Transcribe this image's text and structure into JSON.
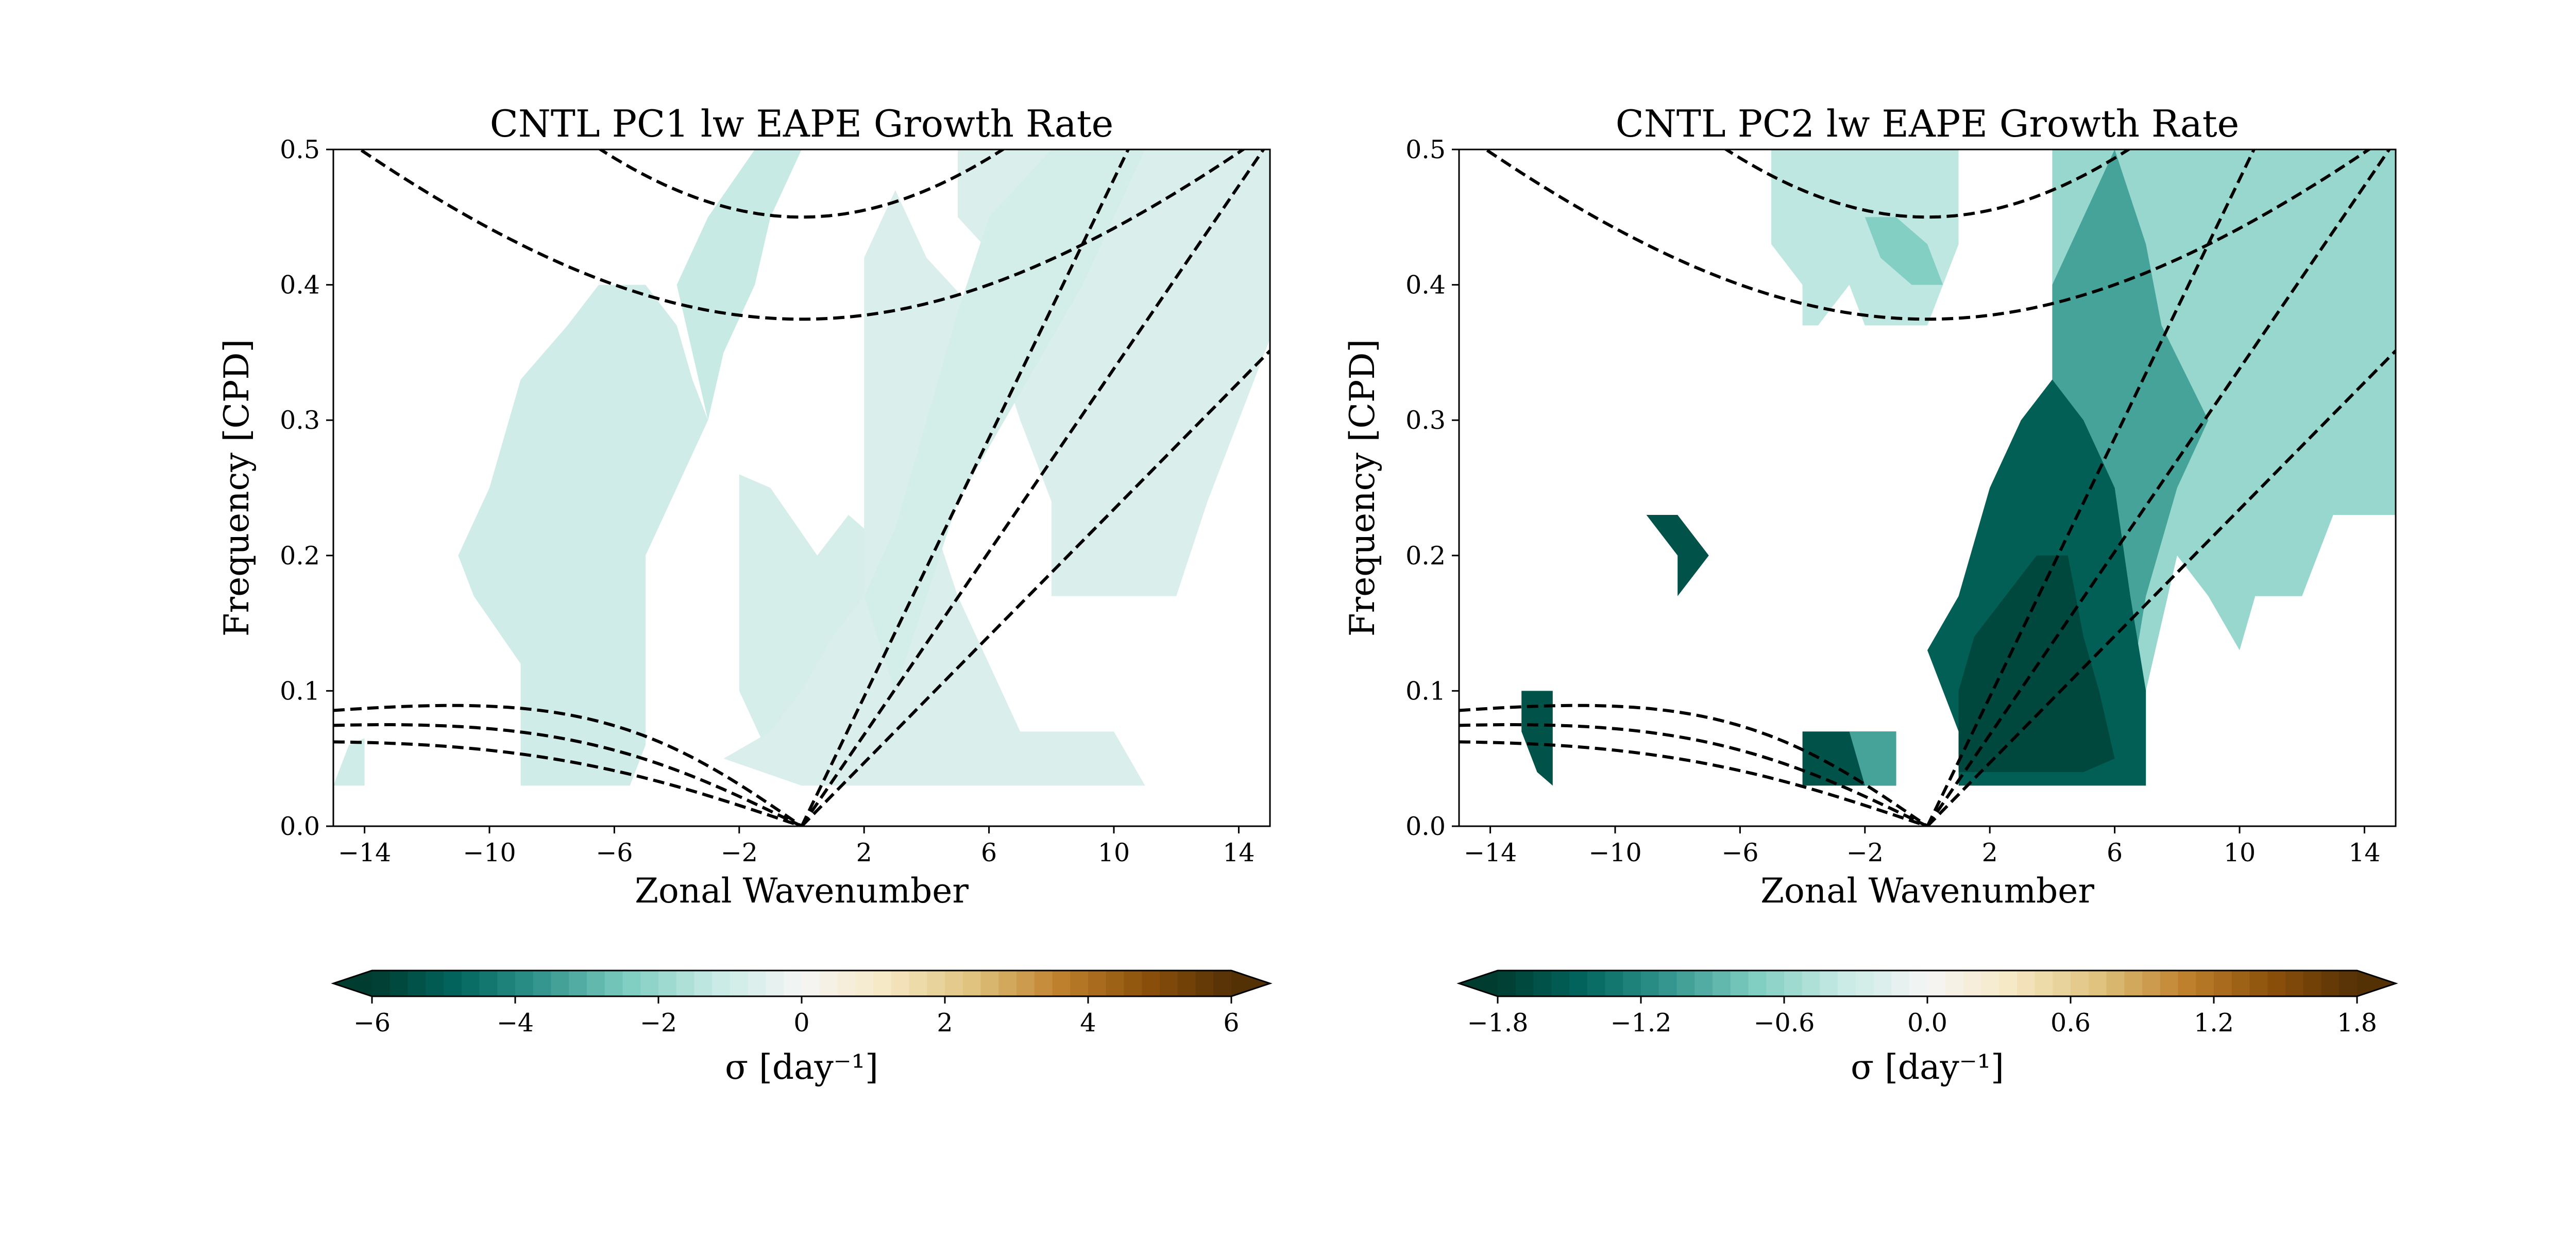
{
  "chart_data": [
    {
      "type": "heatmap",
      "title": "CNTL PC1 lw EAPE Growth Rate",
      "xlabel": "Zonal Wavenumber",
      "ylabel": "Frequency [CPD]",
      "xlim": [
        -15,
        15
      ],
      "ylim": [
        0,
        0.5
      ],
      "xticks": [
        -14,
        -10,
        -6,
        -2,
        2,
        6,
        10,
        14
      ],
      "xtick_labels": [
        "−14",
        "−10",
        "−6",
        "−2",
        "2",
        "6",
        "10",
        "14"
      ],
      "yticks": [
        0,
        0.1,
        0.2,
        0.3,
        0.4,
        0.5
      ],
      "ytick_labels": [
        "0.0",
        "0.1",
        "0.2",
        "0.3",
        "0.4",
        "0.5"
      ],
      "colorbar": {
        "label": "σ [day⁻¹]",
        "range": [
          -6,
          6
        ],
        "ticks": [
          -6,
          -4,
          -2,
          0,
          2,
          4,
          6
        ],
        "tick_labels": [
          "−6",
          "−4",
          "−2",
          "0",
          "2",
          "4",
          "6"
        ],
        "cmap": "BrBG_r",
        "extend": "both"
      },
      "shaded_regions": [
        {
          "value": -1.0,
          "polygon": [
            [
              -9,
              0.03
            ],
            [
              -9,
              0.12
            ],
            [
              -10.5,
              0.17
            ],
            [
              -11,
              0.2
            ],
            [
              -10,
              0.25
            ],
            [
              -9,
              0.33
            ],
            [
              -7.5,
              0.37
            ],
            [
              -6.5,
              0.4
            ],
            [
              -5,
              0.4
            ],
            [
              -4,
              0.37
            ],
            [
              -3.5,
              0.33
            ],
            [
              -3,
              0.3
            ],
            [
              -4,
              0.25
            ],
            [
              -5,
              0.2
            ],
            [
              -5,
              0.06
            ],
            [
              -5.5,
              0.03
            ]
          ]
        },
        {
          "value": -1.2,
          "polygon": [
            [
              -3,
              0.3
            ],
            [
              -2.5,
              0.35
            ],
            [
              -1.5,
              0.4
            ],
            [
              -1,
              0.45
            ],
            [
              0,
              0.5
            ],
            [
              -1.5,
              0.5
            ],
            [
              -3,
              0.45
            ],
            [
              -4,
              0.4
            ]
          ]
        },
        {
          "value": -0.8,
          "polygon": [
            [
              -2,
              0.26
            ],
            [
              -2,
              0.1
            ],
            [
              -1,
              0.05
            ],
            [
              0.5,
              0.04
            ],
            [
              2,
              0.1
            ],
            [
              3,
              0.2
            ],
            [
              1.5,
              0.23
            ],
            [
              0.5,
              0.2
            ],
            [
              -1,
              0.25
            ]
          ]
        },
        {
          "value": -0.7,
          "polygon": [
            [
              -2.5,
              0.05
            ],
            [
              0,
              0.03
            ],
            [
              3,
              0.03
            ],
            [
              11,
              0.03
            ],
            [
              10,
              0.07
            ],
            [
              7,
              0.07
            ],
            [
              6,
              0.12
            ],
            [
              5,
              0.17
            ],
            [
              4,
              0.24
            ],
            [
              5,
              0.3
            ],
            [
              6,
              0.35
            ],
            [
              7,
              0.4
            ],
            [
              5,
              0.45
            ],
            [
              5,
              0.5
            ],
            [
              11,
              0.5
            ],
            [
              15,
              0.5
            ],
            [
              15,
              0.36
            ],
            [
              14,
              0.3
            ],
            [
              13,
              0.24
            ],
            [
              12,
              0.17
            ],
            [
              10,
              0.17
            ],
            [
              8,
              0.17
            ],
            [
              8,
              0.24
            ],
            [
              7,
              0.3
            ],
            [
              6,
              0.37
            ],
            [
              4,
              0.42
            ],
            [
              3,
              0.47
            ],
            [
              2,
              0.42
            ],
            [
              2,
              0.32
            ],
            [
              2,
              0.25
            ],
            [
              2,
              0.17
            ],
            [
              1,
              0.14
            ],
            [
              0,
              0.1
            ],
            [
              -1,
              0.07
            ]
          ]
        },
        {
          "value": -0.9,
          "polygon": [
            [
              2,
              0.17
            ],
            [
              3,
              0.22
            ],
            [
              4,
              0.3
            ],
            [
              5,
              0.38
            ],
            [
              6,
              0.45
            ],
            [
              8,
              0.5
            ],
            [
              11,
              0.5
            ],
            [
              9,
              0.4
            ],
            [
              7,
              0.32
            ],
            [
              5,
              0.24
            ],
            [
              4,
              0.17
            ],
            [
              3,
              0.1
            ]
          ]
        },
        {
          "value": -1.0,
          "polygon": [
            [
              -15,
              0.03
            ],
            [
              -14,
              0.03
            ],
            [
              -14,
              0.065
            ],
            [
              -14.5,
              0.06
            ]
          ]
        }
      ],
      "dashed_curves": "equatorial wave dispersion curves"
    },
    {
      "type": "heatmap",
      "title": "CNTL PC2 lw EAPE Growth Rate",
      "xlabel": "Zonal Wavenumber",
      "ylabel": "Frequency [CPD]",
      "xlim": [
        -15,
        15
      ],
      "ylim": [
        0,
        0.5
      ],
      "xticks": [
        -14,
        -10,
        -6,
        -2,
        2,
        6,
        10,
        14
      ],
      "xtick_labels": [
        "−14",
        "−10",
        "−6",
        "−2",
        "2",
        "6",
        "10",
        "14"
      ],
      "yticks": [
        0,
        0.1,
        0.2,
        0.3,
        0.4,
        0.5
      ],
      "ytick_labels": [
        "0.0",
        "0.1",
        "0.2",
        "0.3",
        "0.4",
        "0.5"
      ],
      "colorbar": {
        "label": "σ [day⁻¹]",
        "range": [
          -1.8,
          1.8
        ],
        "ticks": [
          -1.8,
          -1.2,
          -0.6,
          0,
          0.6,
          1.2,
          1.8
        ],
        "tick_labels": [
          "−1.8",
          "−1.2",
          "−0.6",
          "0.0",
          "0.6",
          "1.2",
          "1.8"
        ],
        "cmap": "BrBG_r",
        "extend": "both"
      },
      "shaded_regions": [
        {
          "value": -0.4,
          "polygon": [
            [
              -5,
              0.5
            ],
            [
              1,
              0.5
            ],
            [
              1,
              0.43
            ],
            [
              0.5,
              0.4
            ],
            [
              0,
              0.37
            ],
            [
              -1,
              0.37
            ],
            [
              -2,
              0.37
            ],
            [
              -2.5,
              0.4
            ],
            [
              -3.5,
              0.37
            ],
            [
              -4,
              0.37
            ],
            [
              -4,
              0.4
            ],
            [
              -5,
              0.43
            ]
          ]
        },
        {
          "value": -0.7,
          "polygon": [
            [
              -2,
              0.45
            ],
            [
              -1,
              0.45
            ],
            [
              0,
              0.43
            ],
            [
              0.5,
              0.4
            ],
            [
              -0.5,
              0.4
            ],
            [
              -1.5,
              0.42
            ]
          ]
        },
        {
          "value": -0.6,
          "polygon": [
            [
              4,
              0.5
            ],
            [
              10,
              0.5
            ],
            [
              15,
              0.5
            ],
            [
              15,
              0.23
            ],
            [
              13,
              0.23
            ],
            [
              12,
              0.17
            ],
            [
              10.5,
              0.17
            ],
            [
              10,
              0.13
            ],
            [
              9,
              0.17
            ],
            [
              8,
              0.2
            ],
            [
              7,
              0.1
            ],
            [
              6,
              0.07
            ],
            [
              6,
              0.2
            ],
            [
              5,
              0.3
            ],
            [
              4,
              0.4
            ],
            [
              4,
              0.45
            ]
          ]
        },
        {
          "value": -1.0,
          "polygon": [
            [
              4,
              0.33
            ],
            [
              4,
              0.4
            ],
            [
              5,
              0.45
            ],
            [
              6,
              0.5
            ],
            [
              7,
              0.43
            ],
            [
              7.5,
              0.37
            ],
            [
              9,
              0.3
            ],
            [
              8,
              0.25
            ],
            [
              7,
              0.17
            ],
            [
              6.5,
              0.1
            ],
            [
              6,
              0.05
            ],
            [
              5,
              0.1
            ],
            [
              4.5,
              0.17
            ],
            [
              4,
              0.25
            ]
          ]
        },
        {
          "value": -1.5,
          "polygon": [
            [
              0,
              0.13
            ],
            [
              1,
              0.07
            ],
            [
              1,
              0.03
            ],
            [
              7,
              0.03
            ],
            [
              7,
              0.1
            ],
            [
              6.5,
              0.17
            ],
            [
              6,
              0.25
            ],
            [
              5,
              0.3
            ],
            [
              4,
              0.33
            ],
            [
              3,
              0.3
            ],
            [
              2,
              0.25
            ],
            [
              1,
              0.17
            ]
          ]
        },
        {
          "value": -1.7,
          "polygon": [
            [
              1,
              0.04
            ],
            [
              1,
              0.1
            ],
            [
              1.5,
              0.14
            ],
            [
              2.5,
              0.17
            ],
            [
              3.5,
              0.2
            ],
            [
              4.5,
              0.2
            ],
            [
              5,
              0.14
            ],
            [
              5.5,
              0.1
            ],
            [
              6,
              0.05
            ],
            [
              5,
              0.04
            ]
          ]
        },
        {
          "value": -1.6,
          "polygon": [
            [
              -9,
              0.23
            ],
            [
              -8,
              0.23
            ],
            [
              -7,
              0.2
            ],
            [
              -8,
              0.17
            ],
            [
              -8,
              0.2
            ]
          ]
        },
        {
          "value": -1.6,
          "polygon": [
            [
              -13,
              0.1
            ],
            [
              -12,
              0.1
            ],
            [
              -12,
              0.03
            ],
            [
              -12.5,
              0.04
            ],
            [
              -13,
              0.07
            ]
          ]
        },
        {
          "value": -1.6,
          "polygon": [
            [
              -4,
              0.07
            ],
            [
              -1,
              0.07
            ],
            [
              -1,
              0.03
            ],
            [
              -4,
              0.03
            ]
          ]
        },
        {
          "value": -1.0,
          "polygon": [
            [
              -2.5,
              0.07
            ],
            [
              -1,
              0.07
            ],
            [
              -1,
              0.03
            ],
            [
              -2,
              0.03
            ]
          ]
        }
      ],
      "dashed_curves": "equatorial wave dispersion curves"
    }
  ]
}
